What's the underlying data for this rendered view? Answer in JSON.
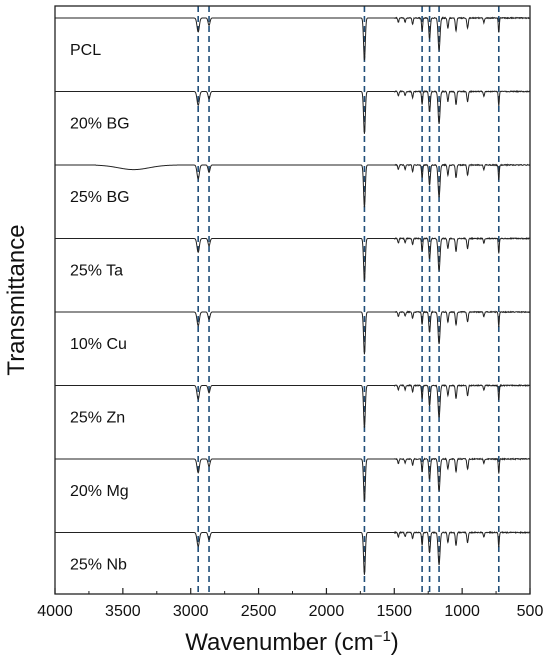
{
  "chart_data": {
    "type": "line",
    "title": "",
    "xlabel": "Wavenumber (cm",
    "xlabel_superscript": "−1",
    "xlabel_suffix": ")",
    "ylabel": "Transmittance",
    "xlim": [
      4000,
      500
    ],
    "x_reversed": true,
    "xticks": [
      4000,
      3500,
      3000,
      2500,
      2000,
      1500,
      1000,
      500
    ],
    "xtick_labels": [
      "4000",
      "3500",
      "3000",
      "2500",
      "2000",
      "1500",
      "1000",
      "500"
    ],
    "y_ticks_shown": false,
    "grid": false,
    "stacked_offset": true,
    "line_color": "#222222",
    "reference_line_color": "#1f4e79",
    "reference_lines": [
      2945,
      2865,
      1720,
      1295,
      1240,
      1170,
      730
    ],
    "bands": [
      {
        "center": 2945,
        "depth": 0.3,
        "width": 12
      },
      {
        "center": 2865,
        "depth": 0.16,
        "width": 10
      },
      {
        "center": 1720,
        "depth": 0.92,
        "width": 9
      },
      {
        "center": 1470,
        "depth": 0.1,
        "width": 6
      },
      {
        "center": 1420,
        "depth": 0.09,
        "width": 6
      },
      {
        "center": 1365,
        "depth": 0.14,
        "width": 6
      },
      {
        "center": 1295,
        "depth": 0.28,
        "width": 6
      },
      {
        "center": 1240,
        "depth": 0.45,
        "width": 8
      },
      {
        "center": 1170,
        "depth": 0.7,
        "width": 10
      },
      {
        "center": 1105,
        "depth": 0.22,
        "width": 7
      },
      {
        "center": 1045,
        "depth": 0.28,
        "width": 7
      },
      {
        "center": 960,
        "depth": 0.22,
        "width": 7
      },
      {
        "center": 840,
        "depth": 0.1,
        "width": 6
      },
      {
        "center": 730,
        "depth": 0.32,
        "width": 5
      }
    ],
    "series": [
      {
        "name": "PCL"
      },
      {
        "name": "20% BG"
      },
      {
        "name": "25% BG"
      },
      {
        "name": "25% Ta"
      },
      {
        "name": "10% Cu"
      },
      {
        "name": "25% Zn"
      },
      {
        "name": "20% Mg"
      },
      {
        "name": "25% Nb"
      }
    ]
  }
}
